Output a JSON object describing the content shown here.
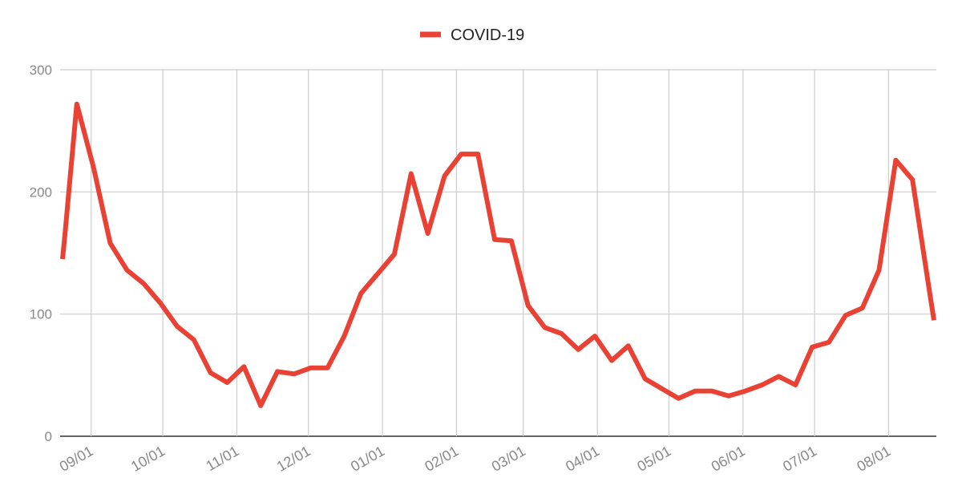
{
  "chart_data": {
    "type": "line",
    "title": "",
    "xlabel": "",
    "ylabel": "",
    "ylim": [
      0,
      300
    ],
    "y_ticks": [
      0,
      100,
      200,
      300
    ],
    "x_range": [
      "2020-08-19",
      "2021-08-21"
    ],
    "x_ticks": [
      {
        "date": "2020-09-01",
        "label": "09/01"
      },
      {
        "date": "2020-10-01",
        "label": "10/01"
      },
      {
        "date": "2020-11-01",
        "label": "11/01"
      },
      {
        "date": "2020-12-01",
        "label": "12/01"
      },
      {
        "date": "2021-01-01",
        "label": "01/01"
      },
      {
        "date": "2021-02-01",
        "label": "02/01"
      },
      {
        "date": "2021-03-01",
        "label": "03/01"
      },
      {
        "date": "2021-04-01",
        "label": "04/01"
      },
      {
        "date": "2021-05-01",
        "label": "05/01"
      },
      {
        "date": "2021-06-01",
        "label": "06/01"
      },
      {
        "date": "2021-07-01",
        "label": "07/01"
      },
      {
        "date": "2021-08-01",
        "label": "08/01"
      }
    ],
    "grid": true,
    "legend": "top-center",
    "series": [
      {
        "name": "COVID-19",
        "color": "#e94235",
        "x": [
          "2020-08-20",
          "2020-08-21",
          "2020-08-26",
          "2020-09-02",
          "2020-09-09",
          "2020-09-16",
          "2020-09-23",
          "2020-09-30",
          "2020-10-07",
          "2020-10-14",
          "2020-10-21",
          "2020-10-28",
          "2020-11-04",
          "2020-11-11",
          "2020-11-18",
          "2020-11-25",
          "2020-12-02",
          "2020-12-09",
          "2020-12-16",
          "2020-12-23",
          "2020-12-30",
          "2021-01-06",
          "2021-01-13",
          "2021-01-20",
          "2021-01-27",
          "2021-02-03",
          "2021-02-10",
          "2021-02-17",
          "2021-02-24",
          "2021-03-03",
          "2021-03-10",
          "2021-03-17",
          "2021-03-24",
          "2021-03-31",
          "2021-04-07",
          "2021-04-14",
          "2021-04-21",
          "2021-04-28",
          "2021-05-05",
          "2021-05-12",
          "2021-05-19",
          "2021-05-26",
          "2021-06-02",
          "2021-06-09",
          "2021-06-16",
          "2021-06-23",
          "2021-06-30",
          "2021-07-07",
          "2021-07-14",
          "2021-07-21",
          "2021-07-28",
          "2021-08-04",
          "2021-08-11",
          "2021-08-18",
          "2021-08-20"
        ],
        "values": [
          145,
          165,
          272,
          220,
          158,
          136,
          125,
          109,
          90,
          79,
          52,
          44,
          57,
          25,
          53,
          51,
          56,
          56,
          82,
          117,
          133,
          149,
          215,
          166,
          213,
          231,
          231,
          161,
          160,
          107,
          89,
          84,
          71,
          82,
          62,
          74,
          47,
          39,
          31,
          37,
          37,
          33,
          37,
          42,
          49,
          42,
          73,
          77,
          99,
          105,
          136,
          226,
          210,
          120,
          95
        ]
      }
    ]
  }
}
